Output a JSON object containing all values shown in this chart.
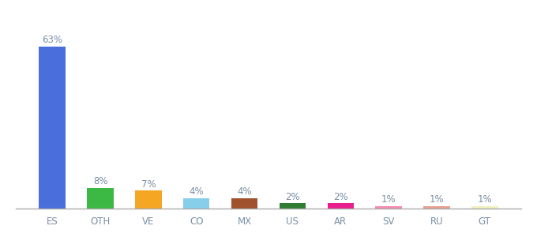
{
  "categories": [
    "ES",
    "OTH",
    "VE",
    "CO",
    "MX",
    "US",
    "AR",
    "SV",
    "RU",
    "GT"
  ],
  "values": [
    63,
    8,
    7,
    4,
    4,
    2,
    2,
    1,
    1,
    1
  ],
  "bar_colors": [
    "#4a6fdc",
    "#3cb944",
    "#f5a623",
    "#87ceeb",
    "#a0522d",
    "#2e7d32",
    "#e91e8c",
    "#f48cb1",
    "#e8a090",
    "#f0f0c0"
  ],
  "labels": [
    "63%",
    "8%",
    "7%",
    "4%",
    "4%",
    "2%",
    "2%",
    "1%",
    "1%",
    "1%"
  ],
  "label_fontsize": 8.5,
  "tick_fontsize": 8.5,
  "tick_color": "#7a8fa6",
  "label_color": "#7a8fa6",
  "background_color": "#ffffff",
  "ylim": [
    0,
    70
  ],
  "bar_width": 0.55
}
